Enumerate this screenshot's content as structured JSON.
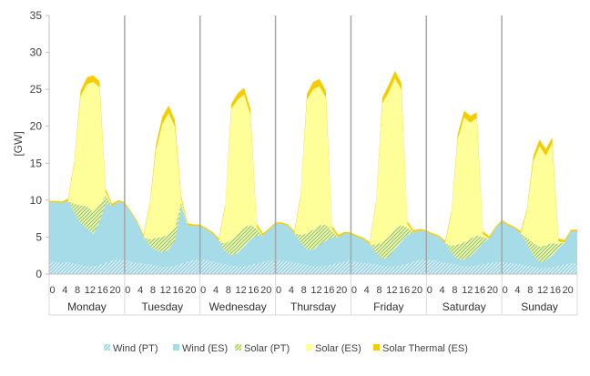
{
  "chart_data": {
    "type": "area",
    "stacked": true,
    "title": "",
    "xlabel": "",
    "ylabel": "[GW]",
    "ylim": [
      0,
      35
    ],
    "yticks": [
      0,
      5,
      10,
      15,
      20,
      25,
      30,
      35
    ],
    "grid": false,
    "legend_position": "bottom",
    "days": [
      "Monday",
      "Tuesday",
      "Wednesday",
      "Thursday",
      "Friday",
      "Saturday",
      "Sunday"
    ],
    "hour_tick_labels": [
      "0",
      "4",
      "8",
      "12",
      "16",
      "20"
    ],
    "hours": [
      0,
      2,
      4,
      6,
      8,
      10,
      12,
      14,
      16,
      18,
      20,
      22
    ],
    "colors": {
      "wind_pt": "#b8e4ec",
      "wind_es": "#a6dbe8",
      "solar_pt": "#bfe07a",
      "solar_es": "#ffff99",
      "solar_thermal_es": "#f5cc00",
      "axis": "#bfbfbf",
      "divider": "#a6a6a6"
    },
    "series": [
      {
        "name": "Wind (PT)",
        "key": "wind_pt",
        "values": [
          [
            1.8,
            1.6,
            1.5,
            1.6,
            1.4,
            1.2,
            1.0,
            1.0,
            1.2,
            1.5,
            1.8,
            1.9
          ],
          [
            1.9,
            1.7,
            1.5,
            1.4,
            1.3,
            1.1,
            0.9,
            0.9,
            1.1,
            1.4,
            1.7,
            1.9
          ],
          [
            2.0,
            1.9,
            1.7,
            1.5,
            1.3,
            1.1,
            1.0,
            1.0,
            1.2,
            1.4,
            1.6,
            1.8
          ],
          [
            1.9,
            1.8,
            1.7,
            1.6,
            1.4,
            1.2,
            1.0,
            1.0,
            1.1,
            1.3,
            1.5,
            1.7
          ],
          [
            1.8,
            1.6,
            1.5,
            1.4,
            1.3,
            1.1,
            1.0,
            1.0,
            1.2,
            1.4,
            1.7,
            1.9
          ],
          [
            2.0,
            1.9,
            1.7,
            1.5,
            1.4,
            1.2,
            1.0,
            1.0,
            1.1,
            1.3,
            1.5,
            1.6
          ],
          [
            1.6,
            1.5,
            1.4,
            1.3,
            1.1,
            1.0,
            0.8,
            0.8,
            0.9,
            1.1,
            1.3,
            1.4
          ]
        ]
      },
      {
        "name": "Wind (ES)",
        "key": "wind_es",
        "values": [
          [
            7.9,
            8.1,
            8.1,
            8.3,
            6.9,
            5.7,
            5.2,
            4.4,
            5.8,
            8.1,
            7.4,
            7.9
          ],
          [
            7.6,
            6.6,
            5.5,
            3.6,
            2.5,
            2.1,
            2.0,
            2.4,
            3.4,
            7.6,
            4.9,
            4.6
          ],
          [
            4.5,
            4.1,
            3.8,
            3.0,
            1.7,
            1.5,
            1.8,
            2.7,
            3.4,
            3.8,
            3.6,
            4.2
          ],
          [
            4.9,
            5.0,
            4.8,
            3.9,
            2.8,
            2.1,
            2.3,
            2.9,
            3.4,
            3.6,
            3.5,
            3.8
          ],
          [
            3.6,
            3.4,
            3.2,
            2.6,
            1.5,
            0.9,
            1.3,
            2.4,
            3.1,
            3.9,
            3.9,
            4.0
          ],
          [
            3.7,
            3.4,
            3.3,
            2.7,
            1.4,
            0.8,
            0.9,
            1.4,
            2.1,
            2.9,
            3.3,
            4.6
          ],
          [
            5.5,
            5.1,
            4.8,
            4.2,
            2.9,
            1.5,
            0.8,
            1.0,
            1.6,
            2.3,
            3.0,
            4.4
          ]
        ]
      },
      {
        "name": "Solar (PT)",
        "key": "solar_pt",
        "values": [
          [
            0,
            0,
            0,
            0,
            1.2,
            2.4,
            3.0,
            3.0,
            2.4,
            1.0,
            0,
            0
          ],
          [
            0,
            0,
            0,
            0,
            0.9,
            1.7,
            2.1,
            2.1,
            1.7,
            0.7,
            0,
            0
          ],
          [
            0,
            0,
            0,
            0,
            1.1,
            2.1,
            2.6,
            2.6,
            2.1,
            0.9,
            0,
            0
          ],
          [
            0,
            0,
            0,
            0,
            1.1,
            2.2,
            2.7,
            2.7,
            2.2,
            0.9,
            0,
            0
          ],
          [
            0,
            0,
            0,
            0,
            1.2,
            2.3,
            2.8,
            2.8,
            2.3,
            1.0,
            0,
            0
          ],
          [
            0,
            0,
            0,
            0,
            1.0,
            2.0,
            2.4,
            2.4,
            2.0,
            0.8,
            0,
            0
          ],
          [
            0,
            0,
            0,
            0,
            0.9,
            1.7,
            2.1,
            2.1,
            1.7,
            0.7,
            0,
            0
          ]
        ]
      },
      {
        "name": "Solar (ES)",
        "key": "solar_es",
        "values": [
          [
            0,
            0,
            0,
            0,
            5.5,
            14.8,
            16.5,
            17.6,
            15.9,
            0.5,
            0,
            0
          ],
          [
            0,
            0,
            0,
            0,
            4.6,
            11.9,
            15.3,
            16.4,
            13.7,
            0.5,
            0,
            0
          ],
          [
            0,
            0,
            0,
            0,
            5.0,
            17.7,
            18.2,
            18.0,
            14.9,
            0.3,
            0,
            0
          ],
          [
            0,
            0,
            0,
            0,
            5.1,
            18.1,
            19.0,
            18.8,
            17.2,
            0.3,
            0,
            0
          ],
          [
            0,
            0,
            0,
            0,
            5.6,
            18.8,
            19.5,
            20.3,
            18.4,
            0.4,
            0,
            0
          ],
          [
            0,
            0,
            0,
            0,
            4.4,
            14.3,
            16.9,
            15.7,
            15.9,
            0.4,
            0,
            0
          ],
          [
            0,
            0,
            0,
            0,
            3.6,
            11.1,
            13.6,
            12.1,
            13.5,
            0.3,
            0,
            0
          ]
        ]
      },
      {
        "name": "Solar Thermal (ES)",
        "key": "solar_thermal_es",
        "values": [
          [
            0.2,
            0.2,
            0.2,
            0.3,
            0.3,
            0.7,
            0.9,
            0.9,
            0.8,
            0.4,
            0.3,
            0.2
          ],
          [
            0.2,
            0.2,
            0.2,
            0.3,
            0.3,
            0.8,
            1.0,
            1.0,
            0.9,
            0.4,
            0.3,
            0.2
          ],
          [
            0.2,
            0.2,
            0.2,
            0.3,
            0.3,
            0.7,
            0.9,
            0.9,
            0.8,
            0.4,
            0.3,
            0.2
          ],
          [
            0.2,
            0.2,
            0.2,
            0.3,
            0.3,
            0.8,
            1.0,
            1.0,
            0.9,
            0.4,
            0.3,
            0.2
          ],
          [
            0.2,
            0.2,
            0.2,
            0.3,
            0.3,
            0.8,
            1.0,
            1.0,
            0.9,
            0.4,
            0.3,
            0.2
          ],
          [
            0.2,
            0.2,
            0.2,
            0.3,
            0.3,
            0.7,
            0.9,
            0.9,
            0.8,
            0.4,
            0.3,
            0.2
          ],
          [
            0.2,
            0.2,
            0.2,
            0.3,
            0.3,
            0.7,
            0.9,
            0.9,
            0.8,
            0.4,
            0.3,
            0.2
          ]
        ]
      }
    ]
  }
}
